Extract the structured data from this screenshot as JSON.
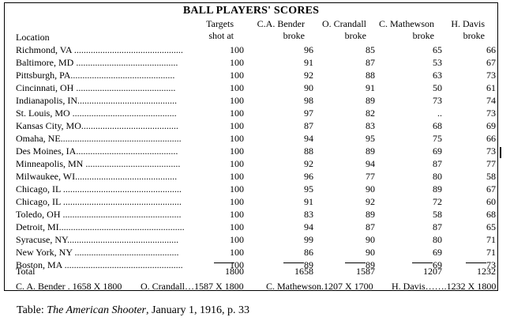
{
  "title": "BALL PLAYERS' SCORES",
  "headers": {
    "location": "Location",
    "columns": [
      {
        "line1": "Targets",
        "line2": "shot at"
      },
      {
        "line1": "C.A. Bender",
        "line2": "broke"
      },
      {
        "line1": "O. Crandall",
        "line2": "broke"
      },
      {
        "line1": "C. Mathewson",
        "line2": "broke"
      },
      {
        "line1": "H. Davis",
        "line2": "broke"
      }
    ]
  },
  "rows": [
    {
      "location": "Richmond, VA ..............................................",
      "values": [
        "100",
        "96",
        "85",
        "65",
        "66"
      ]
    },
    {
      "location": "Baltimore, MD ...........................................",
      "values": [
        "100",
        "91",
        "87",
        "53",
        "67"
      ]
    },
    {
      "location": "Pittsburgh, PA............................................",
      "values": [
        "100",
        "92",
        "88",
        "63",
        "73"
      ]
    },
    {
      "location": "Cincinnati, OH ..........................................",
      "values": [
        "100",
        "90",
        "91",
        "50",
        "61"
      ]
    },
    {
      "location": "Indianapolis, IN..........................................",
      "values": [
        "100",
        "98",
        "89",
        "73",
        "74"
      ]
    },
    {
      "location": "St. Louis, MO ............................................",
      "values": [
        "100",
        "97",
        "82",
        "..",
        "73"
      ]
    },
    {
      "location": "Kansas City, MO.........................................",
      "values": [
        "100",
        "87",
        "83",
        "68",
        "69"
      ]
    },
    {
      "location": "Omaha, NE...................................................",
      "values": [
        "100",
        "94",
        "95",
        "75",
        "66"
      ]
    },
    {
      "location": "Des Moines, IA...........................................",
      "values": [
        "100",
        "88",
        "89",
        "69",
        "73"
      ]
    },
    {
      "location": "Minneapolis, MN ........................................",
      "values": [
        "100",
        "92",
        "94",
        "87",
        "77"
      ]
    },
    {
      "location": "Milwaukee, WI...........................................",
      "values": [
        "100",
        "96",
        "77",
        "80",
        "58"
      ]
    },
    {
      "location": "Chicago, IL ..................................................",
      "values": [
        "100",
        "95",
        "90",
        "89",
        "67"
      ]
    },
    {
      "location": "Chicago, IL ..................................................",
      "values": [
        "100",
        "91",
        "92",
        "72",
        "60"
      ]
    },
    {
      "location": "Toledo, OH ..................................................",
      "values": [
        "100",
        "83",
        "89",
        "58",
        "68"
      ]
    },
    {
      "location": "Detroit, MI.....................................................",
      "values": [
        "100",
        "94",
        "87",
        "87",
        "65"
      ]
    },
    {
      "location": "Syracuse, NY...............................................",
      "values": [
        "100",
        "99",
        "90",
        "80",
        "71"
      ]
    },
    {
      "location": "New York, NY ............................................",
      "values": [
        "100",
        "86",
        "90",
        "69",
        "71"
      ]
    },
    {
      "location": "Boston, MA ..................................................",
      "values": [
        "100",
        "89",
        "89",
        "69",
        "73"
      ]
    }
  ],
  "total": {
    "label": "Total",
    "values": [
      "1800",
      "1658",
      "1587",
      "1207",
      "1232"
    ]
  },
  "summary": [
    "C. A. Bender . 1658 X 1800",
    "O. Crandall…1587 X 1800",
    "C. Mathewson.1207 X 1700",
    "H. Davis…….1232 X 1800"
  ],
  "caption": {
    "prefix": "Table:  ",
    "source": "The American Shooter",
    "suffix": ", January 1, 1916, p. 33"
  }
}
